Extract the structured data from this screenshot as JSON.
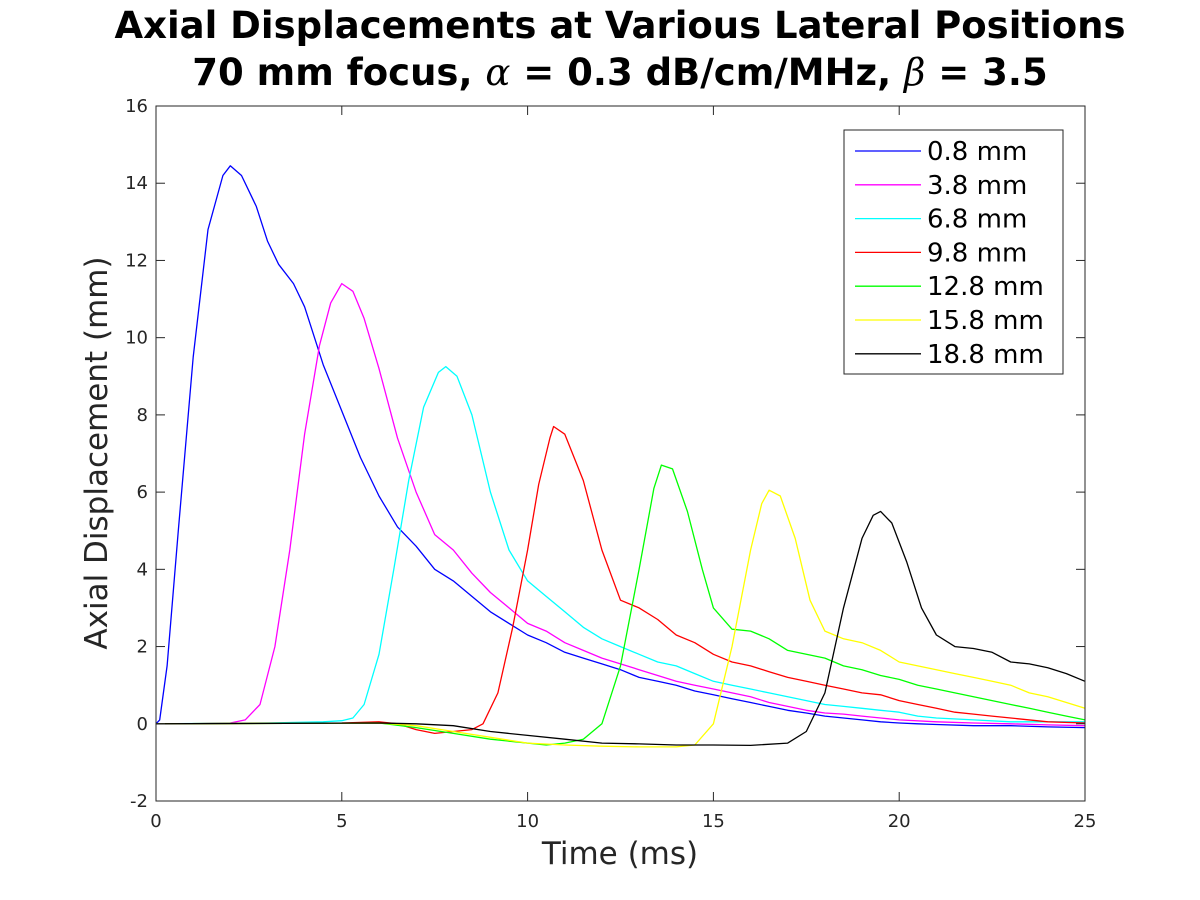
{
  "chart_data": {
    "type": "line",
    "title_line1": "Axial Displacements at Various Lateral Positions",
    "title_line2": {
      "prefix": "70 mm focus, ",
      "alpha_symbol": "α",
      "alpha_text": " = 0.3 dB/cm/MHz, ",
      "beta_symbol": "β",
      "beta_text": " = 3.5"
    },
    "xlabel": "Time (ms)",
    "ylabel": "Axial Displacement (mm)",
    "xlim": [
      0,
      25
    ],
    "ylim": [
      -2,
      16
    ],
    "xticks": [
      "0",
      "5",
      "10",
      "15",
      "20",
      "25"
    ],
    "yticks": [
      "-2",
      "0",
      "2",
      "4",
      "6",
      "8",
      "10",
      "12",
      "14",
      "16"
    ],
    "grid": false,
    "legend_position": "top-right",
    "series": [
      {
        "name": "0.8 mm",
        "color": "#0000ff",
        "points": [
          [
            0,
            0
          ],
          [
            0.1,
            0.1
          ],
          [
            0.3,
            1.5
          ],
          [
            0.6,
            5
          ],
          [
            1,
            9.5
          ],
          [
            1.4,
            12.8
          ],
          [
            1.8,
            14.2
          ],
          [
            2,
            14.45
          ],
          [
            2.3,
            14.2
          ],
          [
            2.7,
            13.4
          ],
          [
            3,
            12.5
          ],
          [
            3.3,
            11.9
          ],
          [
            3.7,
            11.4
          ],
          [
            4,
            10.8
          ],
          [
            4.5,
            9.3
          ],
          [
            5,
            8.1
          ],
          [
            5.5,
            6.9
          ],
          [
            6,
            5.9
          ],
          [
            6.5,
            5.1
          ],
          [
            7,
            4.6
          ],
          [
            7.5,
            4.0
          ],
          [
            8,
            3.7
          ],
          [
            8.5,
            3.3
          ],
          [
            9,
            2.9
          ],
          [
            9.5,
            2.6
          ],
          [
            10,
            2.3
          ],
          [
            10.5,
            2.1
          ],
          [
            11,
            1.85
          ],
          [
            11.5,
            1.7
          ],
          [
            12,
            1.55
          ],
          [
            12.5,
            1.4
          ],
          [
            13,
            1.2
          ],
          [
            13.5,
            1.1
          ],
          [
            14,
            1.0
          ],
          [
            14.5,
            0.85
          ],
          [
            15,
            0.75
          ],
          [
            15.5,
            0.65
          ],
          [
            16,
            0.55
          ],
          [
            16.5,
            0.45
          ],
          [
            17,
            0.35
          ],
          [
            17.5,
            0.28
          ],
          [
            18,
            0.2
          ],
          [
            18.5,
            0.15
          ],
          [
            19,
            0.1
          ],
          [
            19.5,
            0.05
          ],
          [
            20,
            0.02
          ],
          [
            20.5,
            0
          ],
          [
            21,
            -0.02
          ],
          [
            22,
            -0.05
          ],
          [
            23,
            -0.05
          ],
          [
            24,
            -0.08
          ],
          [
            25,
            -0.1
          ]
        ]
      },
      {
        "name": "3.8 mm",
        "color": "#ff00ff",
        "points": [
          [
            0,
            0
          ],
          [
            1,
            0
          ],
          [
            2,
            0.02
          ],
          [
            2.4,
            0.1
          ],
          [
            2.8,
            0.5
          ],
          [
            3.2,
            2
          ],
          [
            3.6,
            4.5
          ],
          [
            4,
            7.5
          ],
          [
            4.4,
            9.8
          ],
          [
            4.7,
            10.9
          ],
          [
            5,
            11.4
          ],
          [
            5.3,
            11.2
          ],
          [
            5.6,
            10.5
          ],
          [
            6,
            9.2
          ],
          [
            6.5,
            7.4
          ],
          [
            7,
            6.0
          ],
          [
            7.5,
            4.9
          ],
          [
            8,
            4.5
          ],
          [
            8.5,
            3.9
          ],
          [
            9,
            3.4
          ],
          [
            9.5,
            3.0
          ],
          [
            10,
            2.6
          ],
          [
            10.5,
            2.4
          ],
          [
            11,
            2.1
          ],
          [
            11.5,
            1.9
          ],
          [
            12,
            1.7
          ],
          [
            12.5,
            1.55
          ],
          [
            13,
            1.4
          ],
          [
            13.5,
            1.25
          ],
          [
            14,
            1.1
          ],
          [
            14.5,
            1.0
          ],
          [
            15,
            0.9
          ],
          [
            15.5,
            0.8
          ],
          [
            16,
            0.7
          ],
          [
            16.5,
            0.55
          ],
          [
            17,
            0.45
          ],
          [
            17.5,
            0.35
          ],
          [
            18,
            0.28
          ],
          [
            18.5,
            0.25
          ],
          [
            19,
            0.2
          ],
          [
            19.5,
            0.15
          ],
          [
            20,
            0.1
          ],
          [
            21,
            0.05
          ],
          [
            22,
            0.02
          ],
          [
            23,
            0
          ],
          [
            24,
            -0.03
          ],
          [
            25,
            -0.05
          ]
        ]
      },
      {
        "name": "6.8 mm",
        "color": "#00ffff",
        "points": [
          [
            0,
            0
          ],
          [
            3,
            0.02
          ],
          [
            4.5,
            0.05
          ],
          [
            5,
            0.08
          ],
          [
            5.3,
            0.15
          ],
          [
            5.6,
            0.5
          ],
          [
            6,
            1.8
          ],
          [
            6.4,
            4
          ],
          [
            6.8,
            6.3
          ],
          [
            7.2,
            8.2
          ],
          [
            7.6,
            9.1
          ],
          [
            7.8,
            9.25
          ],
          [
            8.1,
            9.0
          ],
          [
            8.5,
            8.0
          ],
          [
            9,
            6.0
          ],
          [
            9.5,
            4.5
          ],
          [
            10,
            3.7
          ],
          [
            10.5,
            3.3
          ],
          [
            11,
            2.9
          ],
          [
            11.5,
            2.5
          ],
          [
            12,
            2.2
          ],
          [
            12.5,
            2.0
          ],
          [
            13,
            1.8
          ],
          [
            13.5,
            1.6
          ],
          [
            14,
            1.5
          ],
          [
            14.5,
            1.3
          ],
          [
            15,
            1.1
          ],
          [
            15.5,
            1.0
          ],
          [
            16,
            0.9
          ],
          [
            16.5,
            0.8
          ],
          [
            17,
            0.7
          ],
          [
            17.5,
            0.6
          ],
          [
            18,
            0.5
          ],
          [
            18.5,
            0.45
          ],
          [
            19,
            0.4
          ],
          [
            19.5,
            0.35
          ],
          [
            20,
            0.3
          ],
          [
            20.5,
            0.2
          ],
          [
            21,
            0.15
          ],
          [
            22,
            0.1
          ],
          [
            23,
            0.05
          ],
          [
            24,
            0.05
          ],
          [
            25,
            0.05
          ]
        ]
      },
      {
        "name": "9.8 mm",
        "color": "#ff0000",
        "points": [
          [
            0,
            0
          ],
          [
            5,
            0.02
          ],
          [
            6,
            0.05
          ],
          [
            6.5,
            0
          ],
          [
            7,
            -0.15
          ],
          [
            7.5,
            -0.25
          ],
          [
            8,
            -0.2
          ],
          [
            8.5,
            -0.15
          ],
          [
            8.8,
            0
          ],
          [
            9.2,
            0.8
          ],
          [
            9.6,
            2.5
          ],
          [
            10,
            4.5
          ],
          [
            10.3,
            6.2
          ],
          [
            10.6,
            7.4
          ],
          [
            10.7,
            7.7
          ],
          [
            11,
            7.5
          ],
          [
            11.5,
            6.3
          ],
          [
            12,
            4.5
          ],
          [
            12.5,
            3.2
          ],
          [
            13,
            3.0
          ],
          [
            13.5,
            2.7
          ],
          [
            14,
            2.3
          ],
          [
            14.5,
            2.1
          ],
          [
            15,
            1.8
          ],
          [
            15.5,
            1.6
          ],
          [
            16,
            1.5
          ],
          [
            16.5,
            1.35
          ],
          [
            17,
            1.2
          ],
          [
            17.5,
            1.1
          ],
          [
            18,
            1.0
          ],
          [
            18.5,
            0.9
          ],
          [
            19,
            0.8
          ],
          [
            19.5,
            0.75
          ],
          [
            20,
            0.6
          ],
          [
            20.5,
            0.5
          ],
          [
            21,
            0.4
          ],
          [
            21.5,
            0.3
          ],
          [
            22,
            0.25
          ],
          [
            22.5,
            0.2
          ],
          [
            23,
            0.15
          ],
          [
            24,
            0.05
          ],
          [
            25,
            0.02
          ]
        ]
      },
      {
        "name": "12.8 mm",
        "color": "#00ff00",
        "points": [
          [
            0,
            0
          ],
          [
            6,
            0.02
          ],
          [
            7,
            -0.1
          ],
          [
            8,
            -0.25
          ],
          [
            9,
            -0.4
          ],
          [
            10,
            -0.5
          ],
          [
            10.5,
            -0.55
          ],
          [
            11,
            -0.5
          ],
          [
            11.5,
            -0.4
          ],
          [
            12,
            0
          ],
          [
            12.5,
            1.5
          ],
          [
            13,
            4
          ],
          [
            13.4,
            6.1
          ],
          [
            13.6,
            6.7
          ],
          [
            13.9,
            6.6
          ],
          [
            14.3,
            5.5
          ],
          [
            14.7,
            4
          ],
          [
            15,
            3.0
          ],
          [
            15.5,
            2.45
          ],
          [
            16,
            2.4
          ],
          [
            16.5,
            2.2
          ],
          [
            17,
            1.9
          ],
          [
            17.5,
            1.8
          ],
          [
            18,
            1.7
          ],
          [
            18.5,
            1.5
          ],
          [
            19,
            1.4
          ],
          [
            19.5,
            1.25
          ],
          [
            20,
            1.15
          ],
          [
            20.5,
            1.0
          ],
          [
            21,
            0.9
          ],
          [
            21.5,
            0.8
          ],
          [
            22,
            0.7
          ],
          [
            22.5,
            0.6
          ],
          [
            23,
            0.5
          ],
          [
            23.5,
            0.4
          ],
          [
            24,
            0.3
          ],
          [
            24.5,
            0.2
          ],
          [
            25,
            0.1
          ]
        ]
      },
      {
        "name": "15.8 mm",
        "color": "#ffff00",
        "points": [
          [
            0,
            0
          ],
          [
            6,
            0.02
          ],
          [
            7,
            -0.05
          ],
          [
            8,
            -0.2
          ],
          [
            9,
            -0.35
          ],
          [
            10,
            -0.5
          ],
          [
            11,
            -0.55
          ],
          [
            12,
            -0.58
          ],
          [
            13,
            -0.6
          ],
          [
            14,
            -0.6
          ],
          [
            14.5,
            -0.55
          ],
          [
            15,
            0
          ],
          [
            15.5,
            2
          ],
          [
            16,
            4.5
          ],
          [
            16.3,
            5.7
          ],
          [
            16.5,
            6.05
          ],
          [
            16.8,
            5.9
          ],
          [
            17.2,
            4.8
          ],
          [
            17.6,
            3.2
          ],
          [
            18,
            2.4
          ],
          [
            18.5,
            2.2
          ],
          [
            19,
            2.1
          ],
          [
            19.5,
            1.9
          ],
          [
            20,
            1.6
          ],
          [
            20.5,
            1.5
          ],
          [
            21,
            1.4
          ],
          [
            21.5,
            1.3
          ],
          [
            22,
            1.2
          ],
          [
            22.5,
            1.1
          ],
          [
            23,
            1.0
          ],
          [
            23.5,
            0.8
          ],
          [
            24,
            0.7
          ],
          [
            24.5,
            0.55
          ],
          [
            25,
            0.4
          ]
        ]
      },
      {
        "name": "18.8 mm",
        "color": "#000000",
        "points": [
          [
            0,
            0
          ],
          [
            6,
            0.02
          ],
          [
            7,
            0
          ],
          [
            8,
            -0.05
          ],
          [
            9,
            -0.2
          ],
          [
            10,
            -0.3
          ],
          [
            11,
            -0.4
          ],
          [
            12,
            -0.5
          ],
          [
            13,
            -0.52
          ],
          [
            14,
            -0.55
          ],
          [
            15,
            -0.55
          ],
          [
            16,
            -0.56
          ],
          [
            17,
            -0.5
          ],
          [
            17.5,
            -0.2
          ],
          [
            18,
            0.8
          ],
          [
            18.5,
            3
          ],
          [
            19,
            4.8
          ],
          [
            19.3,
            5.4
          ],
          [
            19.5,
            5.5
          ],
          [
            19.8,
            5.2
          ],
          [
            20.2,
            4.2
          ],
          [
            20.6,
            3.0
          ],
          [
            21,
            2.3
          ],
          [
            21.5,
            2.0
          ],
          [
            22,
            1.95
          ],
          [
            22.5,
            1.85
          ],
          [
            23,
            1.6
          ],
          [
            23.5,
            1.55
          ],
          [
            24,
            1.45
          ],
          [
            24.5,
            1.3
          ],
          [
            25,
            1.1
          ]
        ]
      }
    ]
  }
}
